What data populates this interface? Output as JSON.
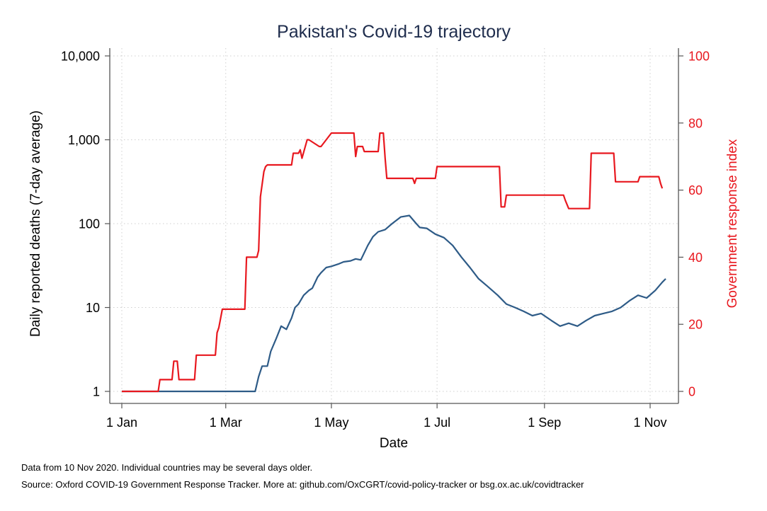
{
  "chart_data": {
    "type": "line",
    "title": "Pakistan's Covid-19 trajectory",
    "xlabel": "Date",
    "ylabel_left": "Daily reported deaths (7-day average)",
    "ylabel_right": "Government response index",
    "x_ticks": [
      "1 Jan",
      "1 Mar",
      "1 May",
      "1 Jul",
      "1 Sep",
      "1 Nov"
    ],
    "x_tick_dates": [
      "2020-01-01",
      "2020-03-01",
      "2020-05-01",
      "2020-07-01",
      "2020-09-01",
      "2020-11-01"
    ],
    "xlim": [
      "2020-01-01",
      "2020-11-10"
    ],
    "left_axis": {
      "scale": "log",
      "ylim": [
        1,
        10000
      ],
      "ticks": [
        1,
        10,
        100,
        1000,
        10000
      ],
      "tick_labels": [
        "1",
        "10",
        "100",
        "1,000",
        "10,000"
      ]
    },
    "right_axis": {
      "scale": "linear",
      "ylim": [
        0,
        100
      ],
      "ticks": [
        0,
        20,
        40,
        60,
        80,
        100
      ],
      "tick_labels": [
        "0",
        "20",
        "40",
        "60",
        "80",
        "100"
      ]
    },
    "grid": true,
    "series": [
      {
        "axis": "left",
        "color": "#2e5b87",
        "x": [
          "2020-01-01",
          "2020-03-01",
          "2020-03-18",
          "2020-03-20",
          "2020-03-22",
          "2020-03-25",
          "2020-03-27",
          "2020-03-30",
          "2020-04-02",
          "2020-04-05",
          "2020-04-08",
          "2020-04-10",
          "2020-04-12",
          "2020-04-15",
          "2020-04-18",
          "2020-04-20",
          "2020-04-23",
          "2020-04-25",
          "2020-04-28",
          "2020-05-01",
          "2020-05-05",
          "2020-05-08",
          "2020-05-12",
          "2020-05-15",
          "2020-05-18",
          "2020-05-22",
          "2020-05-25",
          "2020-05-28",
          "2020-06-01",
          "2020-06-05",
          "2020-06-10",
          "2020-06-15",
          "2020-06-19",
          "2020-06-21",
          "2020-06-25",
          "2020-06-30",
          "2020-07-05",
          "2020-07-10",
          "2020-07-15",
          "2020-07-20",
          "2020-07-25",
          "2020-07-30",
          "2020-08-05",
          "2020-08-10",
          "2020-08-15",
          "2020-08-20",
          "2020-08-25",
          "2020-08-30",
          "2020-09-05",
          "2020-09-10",
          "2020-09-15",
          "2020-09-20",
          "2020-09-25",
          "2020-09-30",
          "2020-10-05",
          "2020-10-10",
          "2020-10-15",
          "2020-10-20",
          "2020-10-25",
          "2020-10-30",
          "2020-11-04",
          "2020-11-08",
          "2020-11-10"
        ],
        "values": [
          1,
          1,
          1,
          1.5,
          2,
          2,
          3,
          4.2,
          6,
          5.5,
          7.5,
          10,
          11,
          14,
          16,
          17,
          23,
          26,
          30,
          31,
          33,
          35,
          36,
          38,
          37,
          55,
          70,
          80,
          85,
          100,
          120,
          125,
          100,
          90,
          88,
          75,
          68,
          55,
          40,
          30,
          22,
          18,
          14,
          11,
          10,
          9,
          8,
          8.5,
          7,
          6,
          6.5,
          6,
          7,
          8,
          8.5,
          9,
          10,
          12,
          14,
          13,
          16,
          20,
          22
        ]
      },
      {
        "axis": "right",
        "color": "#e8181f",
        "x": [
          "2020-01-01",
          "2020-01-22",
          "2020-01-23",
          "2020-01-30",
          "2020-01-31",
          "2020-02-02",
          "2020-02-03",
          "2020-02-12",
          "2020-02-13",
          "2020-02-24",
          "2020-02-25",
          "2020-02-26",
          "2020-02-28",
          "2020-03-01",
          "2020-03-12",
          "2020-03-13",
          "2020-03-19",
          "2020-03-20",
          "2020-03-21",
          "2020-03-23",
          "2020-03-24",
          "2020-03-25",
          "2020-04-08",
          "2020-04-09",
          "2020-04-12",
          "2020-04-13",
          "2020-04-14",
          "2020-04-17",
          "2020-04-18",
          "2020-04-24",
          "2020-04-25",
          "2020-05-01",
          "2020-05-02",
          "2020-05-14",
          "2020-05-15",
          "2020-05-16",
          "2020-05-19",
          "2020-05-20",
          "2020-05-28",
          "2020-05-29",
          "2020-05-31",
          "2020-06-01",
          "2020-06-02",
          "2020-06-17",
          "2020-06-18",
          "2020-06-19",
          "2020-06-20",
          "2020-06-30",
          "2020-07-01",
          "2020-08-06",
          "2020-08-07",
          "2020-08-09",
          "2020-08-10",
          "2020-09-12",
          "2020-09-13",
          "2020-09-15",
          "2020-09-27",
          "2020-09-28",
          "2020-10-11",
          "2020-10-12",
          "2020-10-25",
          "2020-10-26",
          "2020-11-06",
          "2020-11-07",
          "2020-11-08"
        ],
        "values": [
          0,
          0,
          3.5,
          3.5,
          9,
          9,
          3.5,
          3.5,
          10.8,
          10.8,
          17.5,
          19,
          24.5,
          24.5,
          24.5,
          40,
          40,
          42,
          58,
          65.5,
          67,
          67.5,
          67.5,
          71,
          71,
          72,
          69.5,
          75,
          75,
          73,
          73,
          77,
          77,
          77,
          70,
          73,
          73,
          71.5,
          71.5,
          77,
          77,
          69.5,
          63.5,
          63.5,
          62,
          63.5,
          63.5,
          63.5,
          67,
          67,
          55,
          55,
          58.5,
          58.5,
          57,
          54.5,
          54.5,
          71,
          71,
          62.5,
          62.5,
          64,
          64,
          62,
          60.5
        ]
      }
    ]
  },
  "notes": {
    "line1": "Data from 10 Nov 2020. Individual countries may be several days older.",
    "line2": "Source: Oxford COVID-19 Government Response Tracker. More at: github.com/OxCGRT/covid-policy-tracker or bsg.ox.ac.uk/covidtracker"
  },
  "colors": {
    "title": "#1f2d4d",
    "right_axis": "#e8181f",
    "axis": "#555555",
    "grid": "#cfcfcf"
  }
}
